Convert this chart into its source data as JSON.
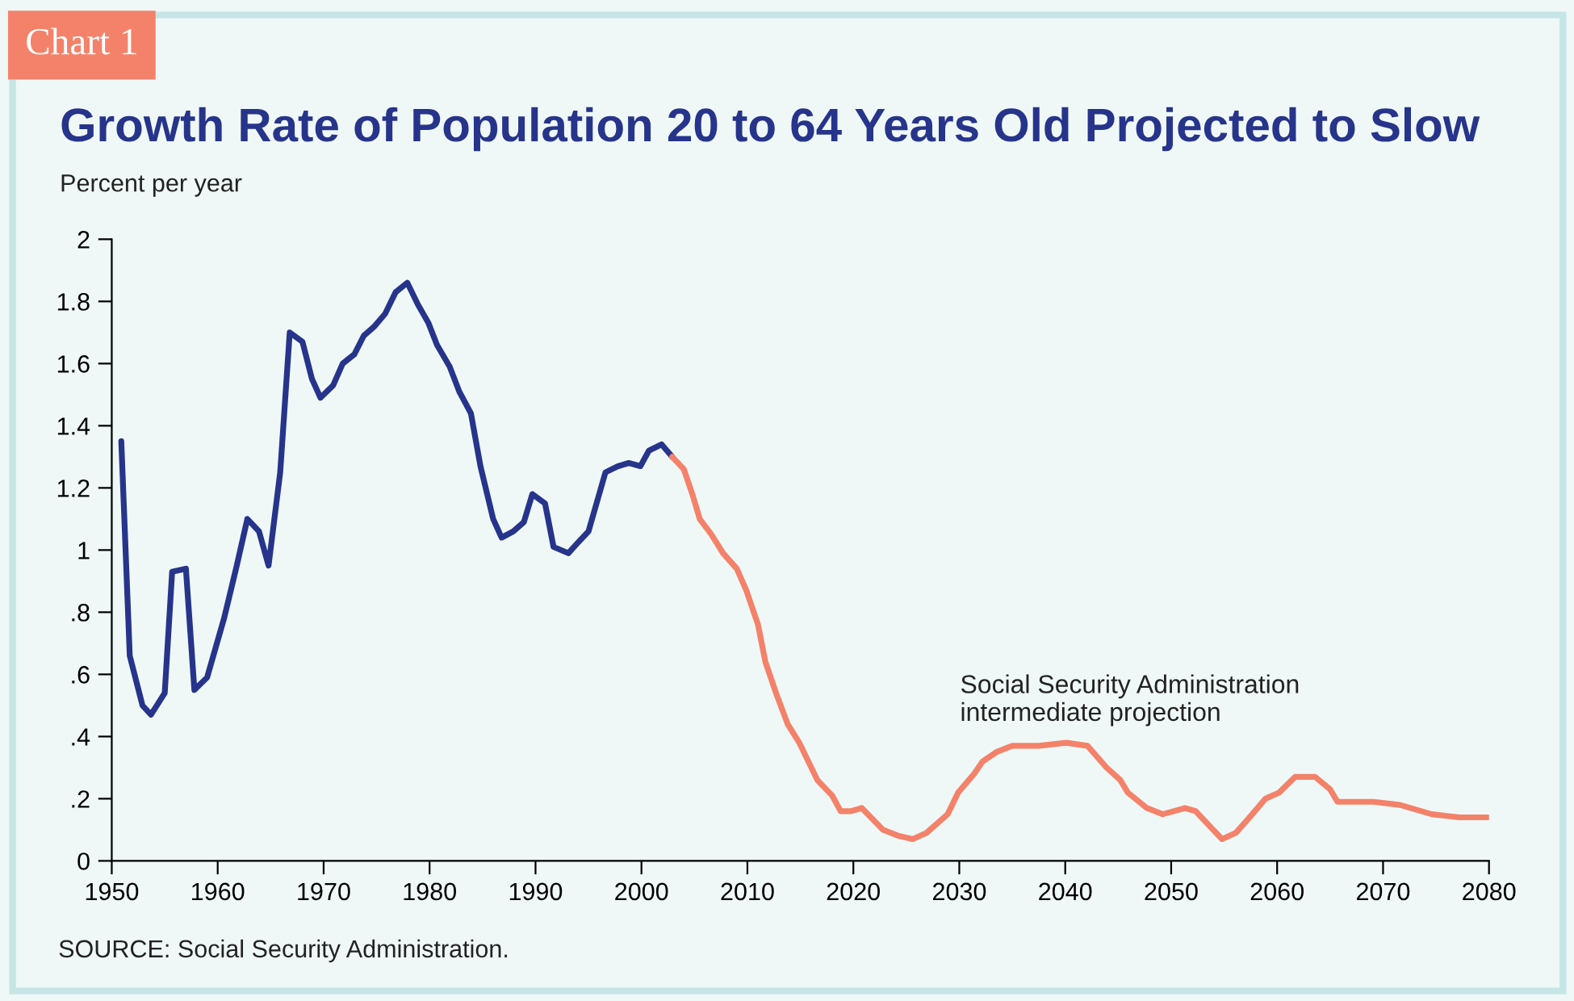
{
  "chart_data": {
    "type": "line",
    "title": "Growth Rate of Population 20 to 64 Years Old Projected to Slow",
    "ylabel": "Percent per year",
    "annotations": [
      "Chart 1",
      "Social Security Administration\nintermediate projection",
      "SOURCE: Social Security Administration."
    ],
    "xlim": [
      1950,
      2080
    ],
    "xticks": [
      1950,
      1960,
      1970,
      1980,
      1990,
      2000,
      2010,
      2020,
      2030,
      2040,
      2050,
      2060,
      2070,
      2080
    ],
    "ylim": [
      0,
      2
    ],
    "yticks": [
      0,
      {
        "value": 0.2,
        "label": ".2"
      },
      {
        "value": 0.4,
        "label": ".4"
      },
      {
        "value": 0.6,
        "label": ".6"
      },
      {
        "value": 0.8,
        "label": ".8"
      },
      1,
      1.2,
      1.4,
      1.6,
      1.8,
      2
    ],
    "grid": false,
    "legend": false,
    "line_style": "solid",
    "marker": "none",
    "series": [
      {
        "color": "#27348b",
        "x": [
          1950.9,
          1951.7,
          1952.9,
          1953.7,
          1955.0,
          1955.7,
          1957.0,
          1957.8,
          1959.0,
          1960.6,
          1961.8,
          1962.8,
          1963.9,
          1964.8,
          1965.9,
          1966.8,
          1968.0,
          1968.9,
          1969.7,
          1970.9,
          1971.8,
          1972.9,
          1973.8,
          1974.8,
          1975.8,
          1976.8,
          1977.9,
          1978.9,
          1979.9,
          1980.7,
          1981.9,
          1982.8,
          1983.9,
          1984.8,
          1986.0,
          1986.8,
          1987.9,
          1988.9,
          1989.7,
          1990.9,
          1991.7,
          1993.1,
          1993.9,
          1995.0,
          1996.6,
          1997.8,
          1998.8,
          1999.9,
          2000.7,
          2001.9,
          2002.9
        ],
        "values": [
          1.35,
          0.66,
          0.5,
          0.47,
          0.54,
          0.93,
          0.94,
          0.55,
          0.59,
          0.78,
          0.95,
          1.1,
          1.06,
          0.95,
          1.25,
          1.7,
          1.67,
          1.55,
          1.49,
          1.53,
          1.6,
          1.63,
          1.69,
          1.72,
          1.76,
          1.83,
          1.86,
          1.79,
          1.73,
          1.66,
          1.59,
          1.51,
          1.44,
          1.27,
          1.1,
          1.04,
          1.06,
          1.09,
          1.18,
          1.15,
          1.01,
          0.99,
          1.02,
          1.06,
          1.25,
          1.27,
          1.28,
          1.27,
          1.32,
          1.34,
          1.3
        ]
      },
      {
        "color": "#f4826a",
        "x": [
          2002.9,
          2004.0,
          2004.8,
          2005.5,
          2006.6,
          2007.7,
          2009.0,
          2009.9,
          2011.0,
          2011.7,
          2012.7,
          2013.8,
          2014.9,
          2016.6,
          2018.0,
          2018.8,
          2019.8,
          2020.8,
          2022.8,
          2024.3,
          2025.6,
          2026.9,
          2028.9,
          2029.9,
          2031.4,
          2032.2,
          2033.5,
          2035.0,
          2037.5,
          2040.1,
          2042.1,
          2043.9,
          2045.2,
          2045.9,
          2047.7,
          2049.2,
          2051.3,
          2052.3,
          2054.8,
          2056.1,
          2057.4,
          2058.9,
          2060.2,
          2061.7,
          2063.6,
          2065.0,
          2065.7,
          2067.0,
          2069.1,
          2071.6,
          2074.6,
          2077.2,
          2080.0
        ],
        "values": [
          1.3,
          1.26,
          1.18,
          1.1,
          1.05,
          0.99,
          0.94,
          0.87,
          0.76,
          0.64,
          0.54,
          0.44,
          0.38,
          0.26,
          0.21,
          0.16,
          0.16,
          0.17,
          0.1,
          0.08,
          0.07,
          0.09,
          0.15,
          0.22,
          0.28,
          0.32,
          0.35,
          0.37,
          0.37,
          0.38,
          0.37,
          0.3,
          0.26,
          0.22,
          0.17,
          0.15,
          0.17,
          0.16,
          0.07,
          0.09,
          0.14,
          0.2,
          0.22,
          0.27,
          0.27,
          0.23,
          0.19,
          0.19,
          0.19,
          0.18,
          0.15,
          0.14,
          0.14
        ]
      }
    ]
  }
}
